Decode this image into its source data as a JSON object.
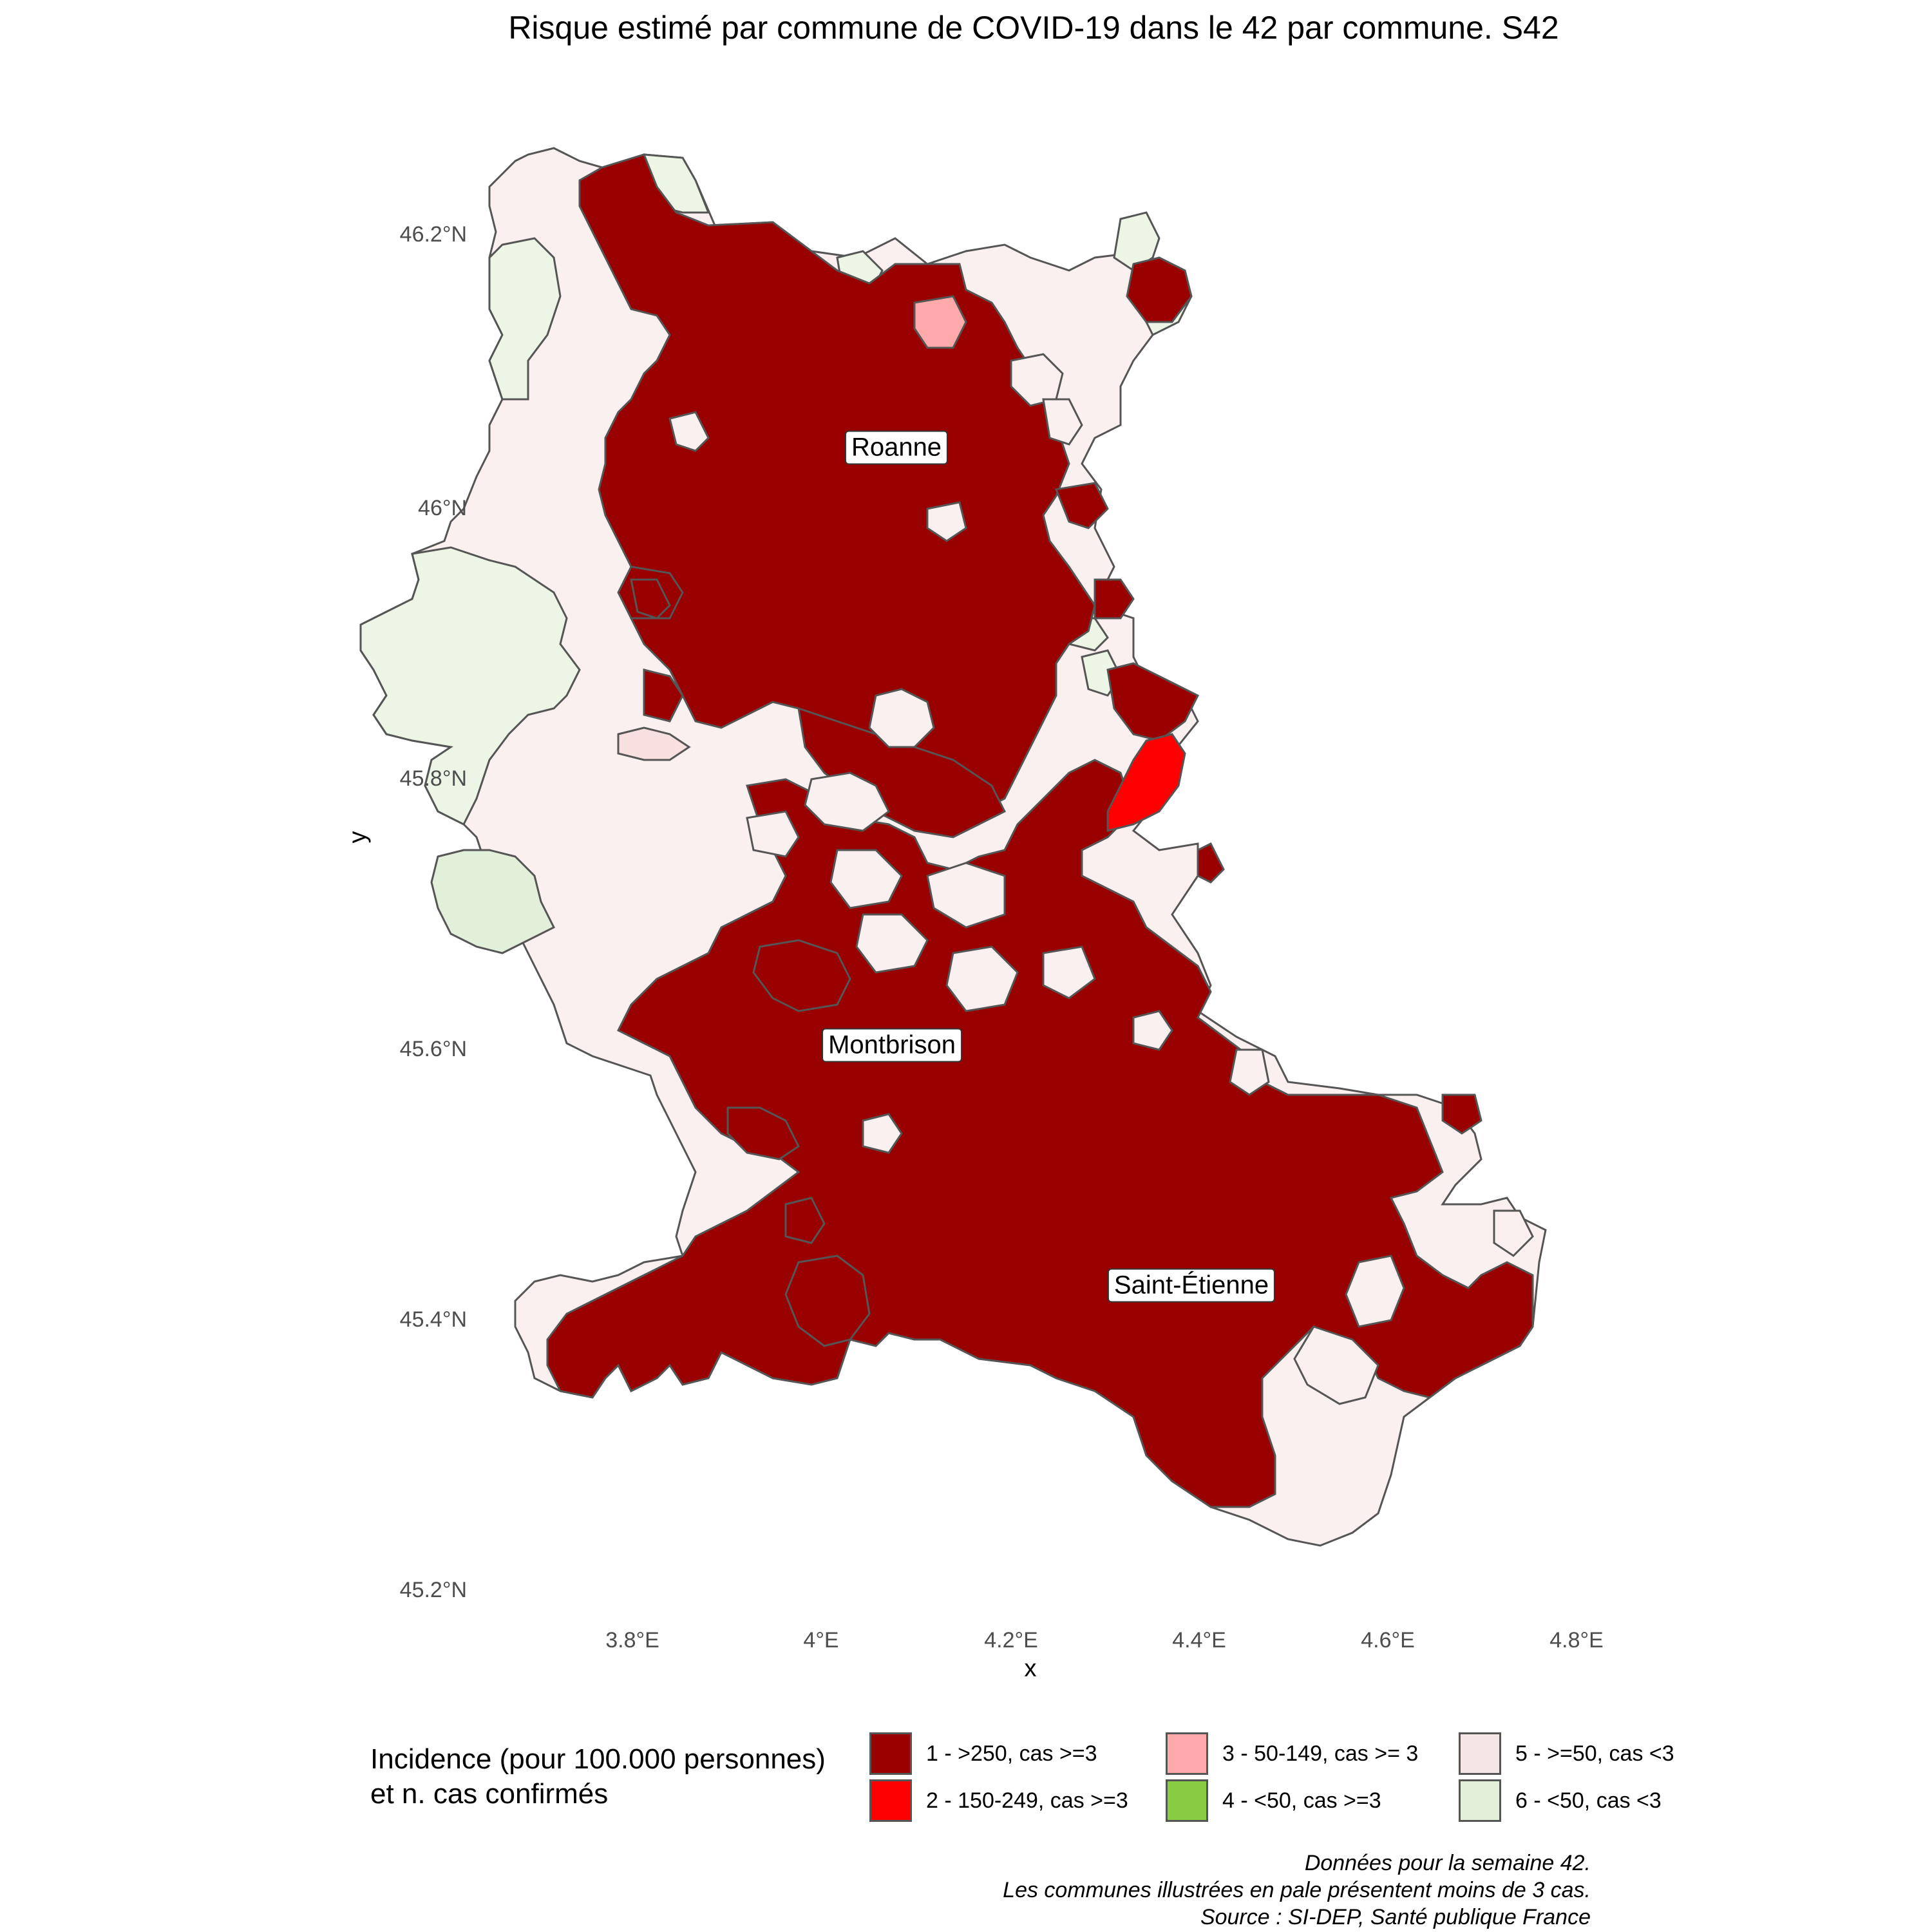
{
  "title": "Risque estimé par commune de COVID-19 dans le 42 par commune. S42",
  "axes": {
    "x_title": "x",
    "y_title": "y",
    "x_ticks": [
      {
        "label": "3.8°E",
        "value": 3.8
      },
      {
        "label": "4°E",
        "value": 4.0
      },
      {
        "label": "4.2°E",
        "value": 4.2
      },
      {
        "label": "4.4°E",
        "value": 4.4
      },
      {
        "label": "4.6°E",
        "value": 4.6
      },
      {
        "label": "4.8°E",
        "value": 4.8
      }
    ],
    "y_ticks": [
      {
        "label": "46.2°N",
        "value": 46.2
      },
      {
        "label": "46°N",
        "value": 46.0
      },
      {
        "label": "45.8°N",
        "value": 45.8
      },
      {
        "label": "45.6°N",
        "value": 45.6
      },
      {
        "label": "45.4°N",
        "value": 45.4
      },
      {
        "label": "45.2°N",
        "value": 45.2
      }
    ],
    "x_range": [
      3.6,
      4.85
    ],
    "y_range": [
      45.15,
      46.32
    ],
    "grid": false
  },
  "cities": [
    {
      "name": "Roanne",
      "lon": 4.08,
      "lat": 46.035
    },
    {
      "name": "Montbrison",
      "lon": 4.06,
      "lat": 45.608
    },
    {
      "name": "Saint-Étienne",
      "lon": 4.39,
      "lat": 45.433
    }
  ],
  "legend": {
    "title_lines": [
      "Incidence (pour 100.000 personnes)",
      "et n. cas confirmés"
    ],
    "placement": "bottom",
    "items": [
      {
        "label": "1 - >250, cas >=3",
        "color": "#990000"
      },
      {
        "label": "2 - 150-249, cas >=3",
        "color": "#ff0000"
      },
      {
        "label": "3 - 50-149, cas >= 3",
        "color": "#ffaaaa"
      },
      {
        "label": "4 - <50, cas >=3",
        "color": "#88cc44"
      },
      {
        "label": "5 - >=50, cas <3",
        "color": "#f5e6e6"
      },
      {
        "label": "6 - <50, cas <3",
        "color": "#e2efd9"
      }
    ]
  },
  "map_colors": {
    "border": "#555555",
    "cat1": "#990000",
    "cat2": "#ff0000",
    "cat3": "#ffaaaa",
    "cat5": "#fbf0f0",
    "cat6": "#edf6e6"
  },
  "caption_lines": [
    "Données pour la semaine 42.",
    "Les communes illustrées en pale présentent moins de 3 cas.",
    "Source : SI-DEP, Santé publique France"
  ]
}
